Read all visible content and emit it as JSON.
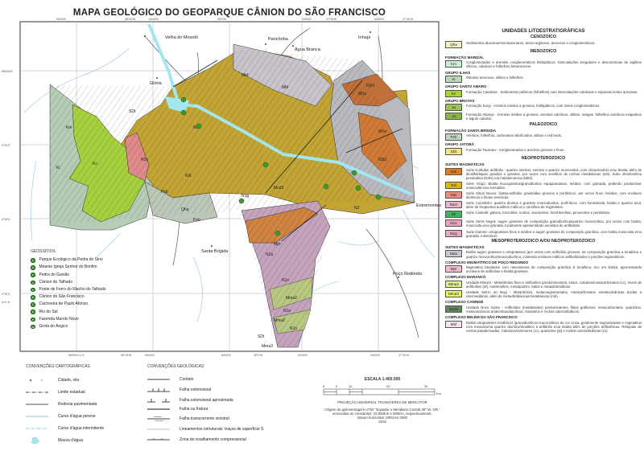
{
  "title": "MAPA GEOLÓGICO DO GEOPARQUE CÂNION DO SÃO FRANCISCO",
  "map_labels": {
    "velha": "Velha do Moxotó",
    "pariconha": "Paricônha",
    "agua_branca": "Água Branca",
    "inhapi": "Inhapi",
    "gloria": "Glória",
    "santa_brigida": "Santa Brígida",
    "entremontes": "Entremontes",
    "poco_redondo": "Poço Redondo"
  },
  "unit_labels": [
    "Km",
    "Kc",
    "Ki",
    "SDt",
    "Mbf",
    "Mbf",
    "N3t1",
    "M2a",
    "M2a",
    "N3t2",
    "N3i",
    "N3i",
    "N3s",
    "Pzb",
    "Qha",
    "Pzb",
    "Mcd3",
    "N1g",
    "N2",
    "Mpr",
    "N2a",
    "N1n",
    "Mma2",
    "N1n",
    "Mma2",
    "N1n",
    "SDt",
    "Mma3"
  ],
  "geosites": {
    "heading": "GEOSSÍTIOS",
    "items": [
      "Parque Ecológico da Pedra do Sino",
      "Mirante Igreja Senhor do Bonfim",
      "Pedra do Gavião",
      "Cânion do Talhado",
      "Ponte de Ferro do Riacho do Talhado",
      "Cânion do São Francisco",
      "Cachoeira de Paulo Afonso",
      "Rio do Sal",
      "Fazenda Mundo Novo",
      "Grota do Angico"
    ],
    "color": "#3a9a30"
  },
  "cartographic": {
    "heading": "CONVENÇÕES CARTOGRÁFICAS",
    "items": [
      "Cidade, vila",
      "Limite estadual",
      "Rodovia pavimentada",
      "Curso d'água perene",
      "Curso d'água intermitente",
      "Massa d'água"
    ]
  },
  "geological": {
    "heading": "CONVENÇÕES GEOLÓGICAS",
    "items": [
      "Contato",
      "Falha extensional",
      "Falha extensional aproximada",
      "Falha ou fratura",
      "Falha transcorrente sinistral",
      "Lineamentos estruturais: traços de superfície S",
      "Zona de cisalhamento compressional"
    ]
  },
  "scale": {
    "title": "ESCALA 1:400.000",
    "ticks": [
      "5",
      "0",
      "10",
      "20",
      "30"
    ],
    "unit": "Km",
    "projection": "PROJEÇÃO UNIVERSAL TRANSVERSA DE MERCATOR",
    "origin1": "Origem da quilometragem UTM: \"Equador e Meridiano Central 39° W. GR.\"",
    "origin2": "acrescidas as constantes: 10.000Km e 500Km, respectivamente.",
    "datum": "Datum horizontal: SIRGAS 2000",
    "year": "2018"
  },
  "grid_labels": {
    "top": [
      "590000",
      "38°30'W",
      "600000",
      "38°0'W",
      "620000",
      "37°45'W",
      "640000",
      "37°30'W"
    ],
    "bottom": [
      "580000 m. E",
      "38°15'W",
      "590000",
      "600000",
      "38°0'W",
      "620000",
      "640000",
      "37°30'W"
    ],
    "left": [
      "8950000",
      "9°00'S",
      "9°45'S",
      "9°30'S",
      "8 m. N"
    ]
  },
  "legend": {
    "title": "UNIDADES LITOESTRATIGRÁFICAS",
    "entries": [
      {
        "era": "CENOZOICO"
      },
      {
        "code": "Qha",
        "color": "#f6f1c2",
        "desc": "Sedimentos aluvionares/coluvionares, areno-argilosos, arenosos e conglomeráticos."
      },
      {
        "era": "MESOZOICO"
      },
      {
        "group": "FORMAÇÃO MARIZAL"
      },
      {
        "code": "Km",
        "color": "#c9eed9",
        "desc": "Conglomerados e arenitos conglomeráticos feldspáticos. Intercalações irregulares e descontínuas de argilitos sílticos, calcários e folhelhos betuminosos."
      },
      {
        "group": "GRUPO ILHAS"
      },
      {
        "code": "Ki",
        "color": "#b9d9b6",
        "desc": "Ritmitos arenosos, siltitos e folhelhos."
      },
      {
        "group": "GRUPO SANTO AMARO"
      },
      {
        "code": "Kc",
        "color": "#a6d13e",
        "desc": "Formação Candeias - Sedimentos pelíticos (folhelhos) com intercalações calcáreas e esparsas lentes arenosas."
      },
      {
        "group": "GRUPO BROTAS"
      },
      {
        "code": "Ja",
        "color": "#9ec25c",
        "desc": "Formação Sergi - Arenitos médios a grossos, feldspáticos, com níveis conglomeráticos."
      },
      {
        "code": "Ja",
        "color": "#8db44a",
        "desc": "Formação Aliança - Arenitos médios a grossos, arenitos calcíticos, siltitos, margas, folhelhos calcíticos evaporitos e algum calcário."
      },
      {
        "era": "PALEOZOICO"
      },
      {
        "group": "FORMAÇÃO SANTA BRÍGIDA"
      },
      {
        "code": "Pzb",
        "color": "#c3d3c2",
        "desc": "Arenitos, folhelhos, carbonatos silicificados, siltitos e red beds."
      },
      {
        "group": "GRUPO JATOBÁ"
      },
      {
        "code": "SDt",
        "color": "#f2e282",
        "desc": "Formação Tacaratu - Conglomerados e arenitos grossos e finos."
      },
      {
        "era": "NEOPROTEROZOICO"
      },
      {
        "group": "SUÍTES MAGMÁTICAS"
      },
      {
        "code": "N3t",
        "color": "#e27a22",
        "desc": "Suíte Curituba: anfibólio - quartzo sienitos, sienitos e quartzo monzonitos, com clinopiroxênio e/ou biotita, além de álcalifeldspato granitos e granitos, por vezes com xenólitos de rochas metabásicas (mb). Suíte shoshonítica peralcalina (N3t1) e/a metaluminosa (N3t2)."
      },
      {
        "code": "N3i",
        "color": "#d9b919",
        "desc": "Suíte Xingó: Biotita leucogranitos/granodioritos equigranulares, médios, com granada, podendo predominar moscovita e/ou turmalina."
      },
      {
        "code": "N3s",
        "color": "#f08a84",
        "desc": "Suíte Sítios Novos: biotita-anfibólio granitóides grossos a porfiríticos, por vezes finos /médios, com enclaves dioríticos e fácies sieníticas."
      },
      {
        "code": "N2cr",
        "color": "#e7b9c9",
        "desc": "Suíte Curralinho: quartzo dioritos e granitos monzodioritos, porfiríticos, com hornblenda, biotita e quartzo azul, além de freqüentes autólitos máficos e xenólitos de migmatitos."
      },
      {
        "code": "N2",
        "color": "#42b262",
        "desc": "Suíte Canindé: gabros, troctolitos, noritos, anortositos, hornblenditos, piroxenitos e peridotitos."
      },
      {
        "code": "N1n",
        "color": "#e9a3bb",
        "desc": "Suíte Serra Negra: augen gnaisses de composição granodiorítica/quartzo monzonítica, por vezes com biotita, moscovita e/ou granada, localmente apresentando xenólitos de anfibolitos."
      },
      {
        "code": "N1g",
        "color": "#e2abc3",
        "desc": "Suíte Garrote: ortognaisses finos a médios e augen gnaisses de composição granítica, com biotita moscovita e/ou granada, miloníticos."
      },
      {
        "era": "MESOPROTEROZOICO A/OU NEOPROTEROZOICO"
      },
      {
        "group": "SUÍTES MAGMÁTICAS"
      },
      {
        "code": "M2a",
        "color": "#c9c9d2",
        "desc": "Biotita augen gnaisses e ortognaisses (por vezes com anfibólio) grossos, de composição granítica a tonalítica e quartzo monzonítica/monzodiorítica, contendo enclaves máficos anfibolitizados e porções migmatíticas."
      },
      {
        "group": "COMPLEXO MIGMATÍTICO DE POÇO REDONDO"
      },
      {
        "code": "Mpr",
        "color": "#f1bccb",
        "desc": "Migmatitos bandados com mesossoma de composição granítica à tonalítica, rico em biotita, apresentando enclaves de anfibólios e biotita gnaisses."
      },
      {
        "group": "COMPLEXO MARANCÓ"
      },
      {
        "code": "Mma2",
        "color": "#e0f08e",
        "desc": "Unidade Minuim - Metaritmitos finos e anfibolitos (predominantes), xistos, calcários/metacarbonatos (cc), níveis de anfibolitos (af), metarriolitos, metaquartzo, lattos e metaultramáficas."
      },
      {
        "code": "Mma3",
        "color": "#e9f26e",
        "desc": "Unidade Morro do Bogi - Metaritmitos, metaconglomerados, metacarbonatos emetavulcânicas ácidas a intermediárias, além de metaultrabásicas/metabásicas (mb)."
      },
      {
        "group": "COMPLEXO CANINDÉ"
      },
      {
        "code": "Mcd3",
        "color": "#618a5a",
        "desc": "Unidade Novo Gosto - Anfibolitos (metabasitos) predominantes, filitos grafitosos, metacarbonatos, quartzitos, metavulcânicas andesíticas/dacíticas, metatufos e rochas calcissilicáticas."
      },
      {
        "group": "COMPLEXO BELÉM DO SÃO FRANCISCO"
      },
      {
        "code": "Mbf",
        "color": "#f9e3f1",
        "desc": "Biotita ortognaisses tonalíticos /granodioríticos leucocráticos de cor cinza, geralmente migmatizados e migmatitos com mesossoma quartzo diorítico/tonalítico a anfibólio e/ou biotita além de porções anfibolíticas. Relíquias de rochas paraderivadas, Calcários/mármores (cc), quartzitos (qt) e rochas calcissilicáticas (cs)."
      }
    ]
  }
}
